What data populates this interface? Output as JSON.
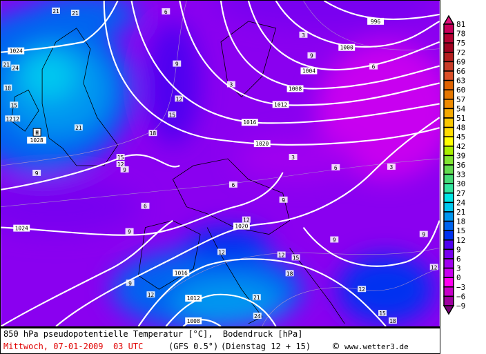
{
  "map": {
    "isobar_labels": [
      "996",
      "1000",
      "1004",
      "1008",
      "1012",
      "1016",
      "1020",
      "1024",
      "1024",
      "1020",
      "1016",
      "1012",
      "1008"
    ],
    "high_marker": {
      "symbol": "H",
      "pressure": "1028"
    },
    "temp_labels": [
      "21",
      "21",
      "24",
      "21",
      "18",
      "15",
      "12",
      "21",
      "9",
      "6",
      "9",
      "12",
      "15",
      "15",
      "18",
      "12",
      "9",
      "6",
      "3",
      "6",
      "6",
      "9",
      "3",
      "9",
      "9",
      "12",
      "12",
      "12",
      "15",
      "18",
      "12",
      "9",
      "12",
      "15",
      "18",
      "21",
      "24",
      "9",
      "12",
      "3",
      "9",
      "6",
      "3",
      "12"
    ]
  },
  "legend": {
    "labels": [
      "81",
      "78",
      "75",
      "72",
      "69",
      "66",
      "63",
      "60",
      "57",
      "54",
      "51",
      "48",
      "45",
      "42",
      "39",
      "36",
      "33",
      "30",
      "27",
      "24",
      "21",
      "18",
      "15",
      "12",
      "9",
      "6",
      "3",
      "0",
      "−3",
      "−6",
      "−9"
    ],
    "top_arrow_color": "#e0107a",
    "bottom_arrow_color": "#780078",
    "colors": [
      "#c8005a",
      "#b40032",
      "#a00020",
      "#b41e1e",
      "#c83c28",
      "#dc5028",
      "#e06400",
      "#e67800",
      "#f08c00",
      "#f5aa00",
      "#fac800",
      "#ffdc00",
      "#ffff00",
      "#aaf000",
      "#82e632",
      "#64dc50",
      "#46dc78",
      "#32e6a0",
      "#00e6e6",
      "#00c8f0",
      "#0096f0",
      "#0064f0",
      "#0032f0",
      "#5000f0",
      "#7800f0",
      "#a000f0",
      "#c800f0",
      "#ff00f0",
      "#c800c8",
      "#a000a0"
    ]
  },
  "footer": {
    "title": "850 hPa pseudopotentielle Temperatur [°C],  Bodendruck [hPa]",
    "date": "Mittwoch, 07-01-2009  03 UTC",
    "model": "(GFS 0.5°)",
    "forecast": "(Dienstag 12 + 15)",
    "copyright_symbol": "©",
    "site": "www.wetter3.de"
  }
}
